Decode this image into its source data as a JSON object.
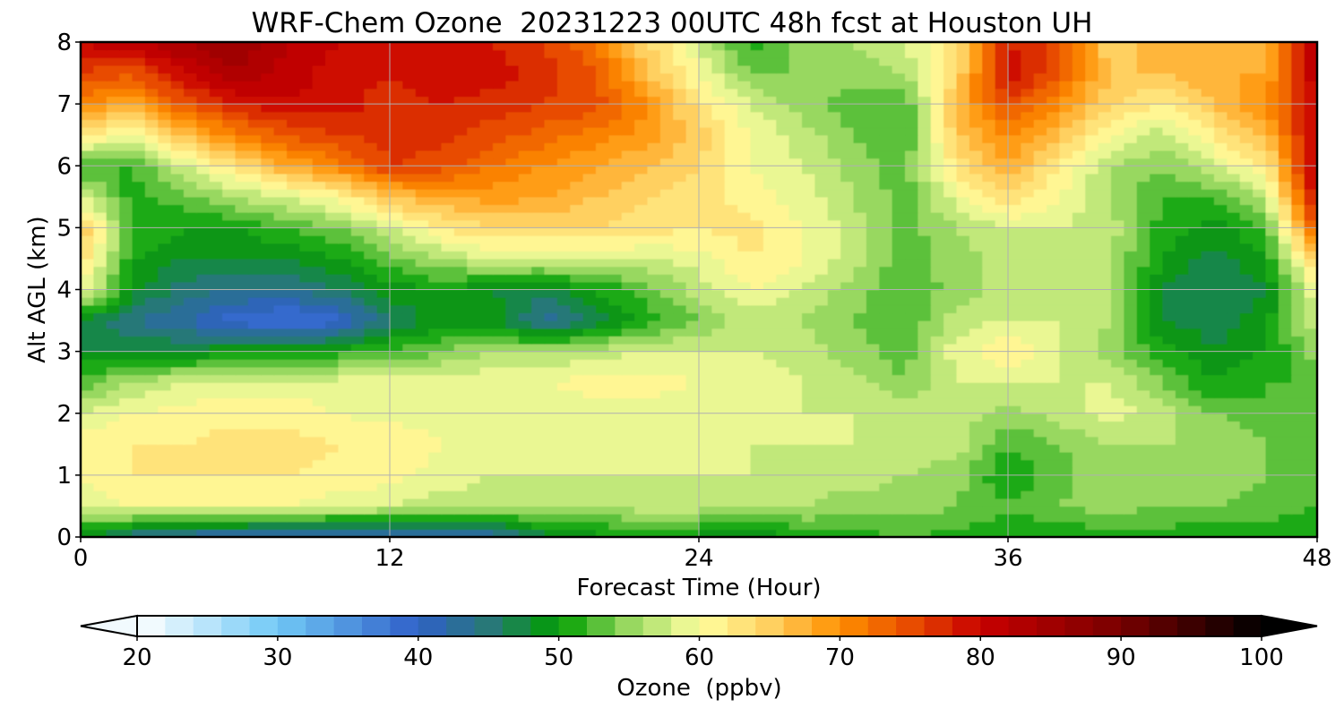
{
  "chart_data": {
    "type": "heatmap",
    "title": "WRF-Chem Ozone  20231223 00UTC 48h fcst at Houston UH",
    "xlabel": "Forecast Time (Hour)",
    "ylabel": "Alt AGL (km)",
    "xlim": [
      0,
      48
    ],
    "ylim": [
      0,
      8
    ],
    "x_ticks": [
      0,
      12,
      24,
      36,
      48
    ],
    "y_ticks": [
      0,
      1,
      2,
      3,
      4,
      5,
      6,
      7,
      8
    ],
    "grid": true,
    "x": [
      0,
      2,
      4,
      6,
      8,
      10,
      12,
      14,
      16,
      18,
      20,
      22,
      24,
      26,
      28,
      30,
      32,
      34,
      36,
      38,
      40,
      42,
      44,
      46,
      48
    ],
    "y": [
      0,
      0.5,
      1,
      1.5,
      2,
      2.5,
      3,
      3.5,
      4,
      4.5,
      5,
      5.5,
      6,
      6.5,
      7,
      7.5,
      8
    ],
    "z": [
      [
        48,
        44,
        42,
        41,
        40,
        40,
        40,
        41,
        42,
        47,
        49,
        50,
        49,
        47,
        51,
        51,
        52,
        51,
        51,
        50,
        51,
        51,
        50,
        51,
        50
      ],
      [
        58,
        60,
        60,
        60,
        60,
        59,
        58,
        57,
        57,
        56,
        56,
        57,
        57,
        56,
        56,
        55,
        55,
        54,
        52,
        54,
        55,
        54,
        54,
        53,
        52
      ],
      [
        60,
        62,
        62,
        62,
        62,
        61,
        61,
        59,
        58,
        58,
        58,
        58,
        58,
        58,
        57,
        57,
        56,
        55,
        50,
        53,
        56,
        55,
        55,
        54,
        52
      ],
      [
        61,
        62,
        62,
        63,
        63,
        62,
        62,
        60,
        59,
        58,
        58,
        58,
        58,
        58,
        58,
        58,
        57,
        57,
        52,
        54,
        56,
        56,
        56,
        54,
        52
      ],
      [
        58,
        60,
        61,
        61,
        61,
        60,
        59,
        59,
        58,
        58,
        59,
        59,
        58,
        58,
        58,
        58,
        58,
        57,
        55,
        57,
        59,
        57,
        54,
        52,
        52
      ],
      [
        53,
        56,
        58,
        59,
        59,
        59,
        59,
        59,
        60,
        60,
        61,
        61,
        60,
        59,
        58,
        57,
        54,
        58,
        58,
        58,
        58,
        54,
        50,
        52,
        52
      ],
      [
        48,
        48,
        48,
        50,
        50,
        51,
        52,
        54,
        56,
        56,
        57,
        58,
        58,
        58,
        57,
        55,
        53,
        59,
        62,
        58,
        55,
        51,
        48,
        50,
        55
      ],
      [
        48,
        44,
        42,
        39,
        37,
        39,
        46,
        49,
        49,
        43,
        47,
        51,
        54,
        57,
        56,
        54,
        52,
        57,
        58,
        58,
        56,
        48,
        47,
        49,
        58
      ],
      [
        60,
        49,
        45,
        44,
        44,
        46,
        49,
        50,
        48,
        47,
        50,
        53,
        57,
        60,
        58,
        55,
        52,
        55,
        57,
        58,
        56,
        48,
        46,
        48,
        60
      ],
      [
        64,
        50,
        48,
        48,
        48,
        50,
        53,
        56,
        58,
        58,
        58,
        58,
        59,
        62,
        60,
        57,
        53,
        55,
        57,
        58,
        56,
        50,
        47,
        50,
        65
      ],
      [
        66,
        52,
        50,
        50,
        52,
        54,
        58,
        62,
        64,
        64,
        64,
        63,
        62,
        63,
        60,
        57,
        53,
        56,
        58,
        58,
        57,
        51,
        49,
        52,
        75
      ],
      [
        58,
        51,
        53,
        56,
        58,
        61,
        66,
        68,
        69,
        68,
        66,
        64,
        63,
        61,
        59,
        56,
        53,
        59,
        64,
        60,
        56,
        52,
        52,
        57,
        80
      ],
      [
        52,
        52,
        58,
        63,
        68,
        71,
        76,
        75,
        72,
        70,
        68,
        66,
        64,
        60,
        58,
        55,
        53,
        63,
        68,
        62,
        56,
        54,
        58,
        62,
        82
      ],
      [
        62,
        60,
        66,
        71,
        74,
        76,
        77,
        77,
        75,
        73,
        71,
        69,
        65,
        60,
        57,
        54,
        52,
        65,
        71,
        66,
        60,
        57,
        62,
        66,
        82
      ],
      [
        70,
        68,
        74,
        78,
        80,
        79,
        77,
        78,
        77,
        76,
        75,
        70,
        63,
        58,
        55,
        53,
        52,
        67,
        75,
        70,
        64,
        62,
        66,
        70,
        80
      ],
      [
        76,
        74,
        80,
        84,
        81,
        79,
        78,
        80,
        79,
        77,
        74,
        66,
        60,
        54,
        54,
        55,
        56,
        64,
        80,
        74,
        66,
        66,
        68,
        68,
        82
      ],
      [
        80,
        82,
        84,
        86,
        82,
        80,
        79,
        80,
        78,
        76,
        72,
        64,
        58,
        51,
        55,
        56,
        58,
        63,
        78,
        75,
        64,
        68,
        66,
        66,
        84
      ]
    ],
    "colorbar": {
      "label": "Ozone  (ppbv)",
      "min": 20,
      "max": 100,
      "ticks": [
        20,
        30,
        40,
        50,
        60,
        70,
        80,
        90,
        100
      ],
      "extend": "both",
      "stops": [
        {
          "v": 20,
          "c": "#ffffff"
        },
        {
          "v": 30,
          "c": "#70c8f6"
        },
        {
          "v": 40,
          "c": "#3060c8"
        },
        {
          "v": 45,
          "c": "#287878"
        },
        {
          "v": 50,
          "c": "#009e00"
        },
        {
          "v": 55,
          "c": "#98d860"
        },
        {
          "v": 60,
          "c": "#ffffa0"
        },
        {
          "v": 65,
          "c": "#ffd060"
        },
        {
          "v": 70,
          "c": "#ff9000"
        },
        {
          "v": 75,
          "c": "#e84c00"
        },
        {
          "v": 80,
          "c": "#c80000"
        },
        {
          "v": 90,
          "c": "#780000"
        },
        {
          "v": 100,
          "c": "#000000"
        }
      ]
    }
  }
}
